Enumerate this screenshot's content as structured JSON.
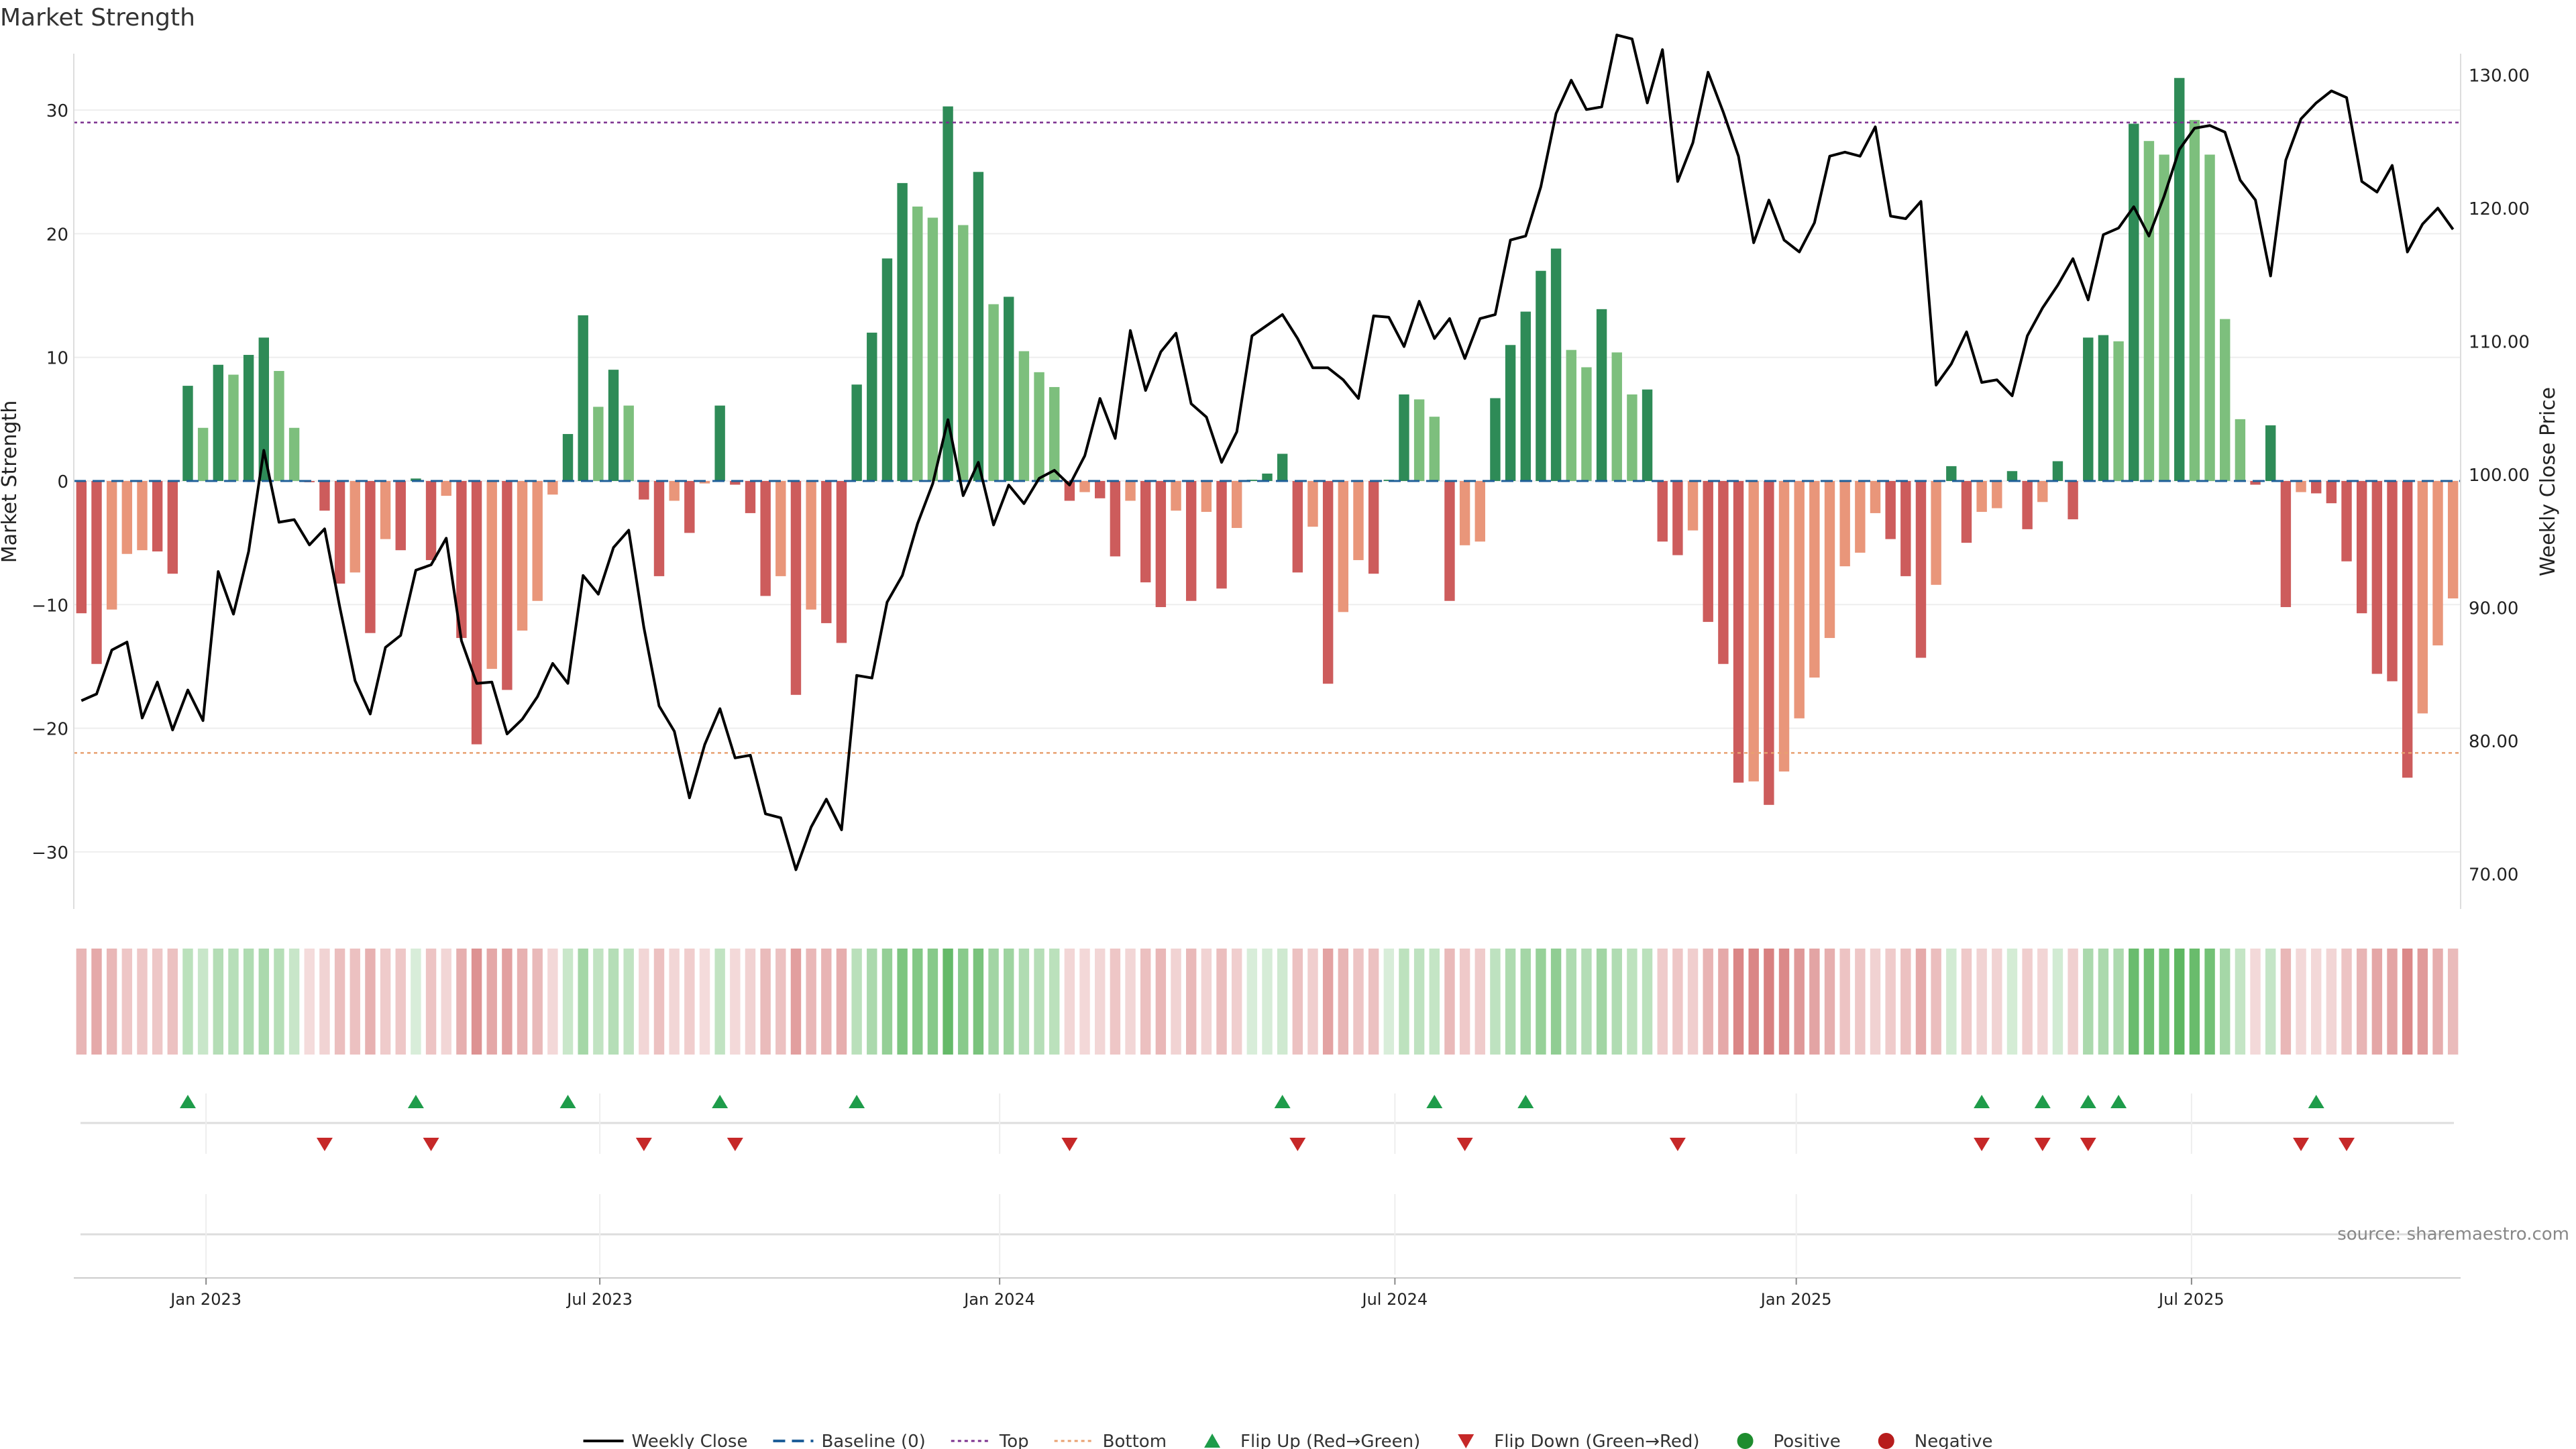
{
  "chart_data": {
    "type": "bar",
    "title": "Market Strength",
    "ylabel_left": "Market Strength",
    "ylabel_right": "Weekly Close Price",
    "source": "source: sharemaestro.com",
    "ylim_left": [
      -35,
      35
    ],
    "ylim_right": [
      67,
      132
    ],
    "yticks_left": [
      30,
      20,
      10,
      0,
      -10,
      -20,
      -30
    ],
    "yticks_left_labels": [
      "30",
      "20",
      "10",
      "0",
      "−10",
      "−20",
      "−30"
    ],
    "yticks_right": [
      130,
      120,
      110,
      100,
      90,
      80,
      70
    ],
    "yticks_right_labels": [
      "130.00",
      "120.00",
      "110.00",
      "100.00",
      "90.00",
      "80.00",
      "70.00"
    ],
    "x_tick_labels": [
      {
        "label": "Jan 2023",
        "week": 8.7
      },
      {
        "label": "Jul 2023",
        "week": 34.6
      },
      {
        "label": "Jan 2024",
        "week": 60.9
      },
      {
        "label": "Jul 2024",
        "week": 86.9
      },
      {
        "label": "Jan 2025",
        "week": 113.3
      },
      {
        "label": "Jul 2025",
        "week": 139.3
      }
    ],
    "top_level": 29,
    "bottom_level": -22,
    "strength": [
      -10.7,
      -14.8,
      -10.4,
      -5.9,
      -5.6,
      -5.7,
      -7.5,
      7.7,
      4.3,
      9.4,
      8.6,
      10.2,
      11.6,
      8.9,
      4.3,
      -0.1,
      -2.4,
      -8.3,
      -7.4,
      -12.3,
      -4.7,
      -5.6,
      0.2,
      -6.4,
      -1.2,
      -12.7,
      -21.3,
      -15.2,
      -16.9,
      -12.1,
      -9.7,
      -1.1,
      3.8,
      13.4,
      6.0,
      9.0,
      6.1,
      -1.5,
      -7.7,
      -1.6,
      -4.2,
      -0.2,
      6.1,
      -0.3,
      -2.6,
      -9.3,
      -7.7,
      -17.3,
      -10.4,
      -11.5,
      -13.1,
      7.8,
      12.0,
      18.0,
      24.1,
      22.2,
      21.3,
      30.3,
      20.7,
      25.0,
      14.3,
      14.9,
      10.5,
      8.8,
      7.6,
      -1.6,
      -0.9,
      -1.4,
      -6.1,
      -1.6,
      -8.2,
      -10.2,
      -2.4,
      -9.7,
      -2.5,
      -8.7,
      -3.8,
      0.1,
      0.6,
      2.2,
      -7.4,
      -3.7,
      -16.4,
      -10.6,
      -6.4,
      -7.5,
      0.1,
      7.0,
      6.6,
      5.2,
      -9.7,
      -5.2,
      -4.9,
      6.7,
      11.0,
      13.7,
      17.0,
      18.8,
      10.6,
      9.2,
      13.9,
      10.4,
      7.0,
      7.4,
      -4.9,
      -6.0,
      -4.0,
      -11.4,
      -14.8,
      -24.4,
      -24.3,
      -26.2,
      -23.5,
      -19.2,
      -15.9,
      -12.7,
      -6.9,
      -5.8,
      -2.6,
      -4.7,
      -7.7,
      -14.3,
      -8.4,
      1.2,
      -5.0,
      -2.5,
      -2.2,
      0.8,
      -3.9,
      -1.7,
      1.6,
      -3.1,
      11.6,
      11.8,
      11.3,
      28.9,
      27.5,
      26.4,
      32.6,
      29.2,
      26.4,
      13.1,
      5.0,
      -0.3,
      4.5,
      -10.2,
      -0.9,
      -1.0,
      -1.8,
      -6.5,
      -10.7,
      -15.6,
      -16.2,
      -24.0,
      -18.8,
      -13.3,
      -9.5
    ],
    "close": [
      83.0,
      83.5,
      86.8,
      87.4,
      81.7,
      84.4,
      80.8,
      83.8,
      81.5,
      92.7,
      89.5,
      94.2,
      101.8,
      96.4,
      96.6,
      94.7,
      95.9,
      90.0,
      84.5,
      82.0,
      87.0,
      87.9,
      92.8,
      93.2,
      95.2,
      87.5,
      84.3,
      84.4,
      80.5,
      81.6,
      83.3,
      85.8,
      84.3,
      92.4,
      91.0,
      94.5,
      95.8,
      88.5,
      82.6,
      80.7,
      75.7,
      79.7,
      82.4,
      78.7,
      78.9,
      74.5,
      74.2,
      70.3,
      73.5,
      75.6,
      73.3,
      84.9,
      84.7,
      90.4,
      92.4,
      96.3,
      99.3,
      104.1,
      98.4,
      100.9,
      96.2,
      99.2,
      97.8,
      99.7,
      100.3,
      99.2,
      101.4,
      105.7,
      102.7,
      110.8,
      106.3,
      109.2,
      110.6,
      105.3,
      104.3,
      100.9,
      103.2,
      110.4,
      111.2,
      112.0,
      110.2,
      108.0,
      108.0,
      107.1,
      105.7,
      111.9,
      111.8,
      109.6,
      113.0,
      110.2,
      111.7,
      108.7,
      111.7,
      112.0,
      117.6,
      117.9,
      121.6,
      127.1,
      129.6,
      127.4,
      127.6,
      133.0,
      132.7,
      127.9,
      131.9,
      122.0,
      124.9,
      130.2,
      127.2,
      123.9,
      117.4,
      120.6,
      117.6,
      116.7,
      118.9,
      123.9,
      124.2,
      123.9,
      126.1,
      119.4,
      119.2,
      120.5,
      106.7,
      108.3,
      110.7,
      106.9,
      107.1,
      105.9,
      110.4,
      112.5,
      114.2,
      116.2,
      113.1,
      118.0,
      118.5,
      120.1,
      117.9,
      120.9,
      124.4,
      126.0,
      126.2,
      125.7,
      122.1,
      120.6,
      114.9,
      123.6,
      126.7,
      127.9,
      128.8,
      128.3,
      122.0,
      121.2,
      123.2,
      116.7,
      118.8,
      120.0,
      118.4
    ],
    "color_bar": [
      "#bd9c9c",
      "#b8b8b8",
      "#c2a5a5",
      "#c7c7c7",
      "#d6b4b4",
      "#9fcda6",
      "#cad4cb"
    ],
    "flip_up_weeks": [
      7,
      22,
      32,
      42,
      51,
      79,
      89,
      95,
      125,
      129,
      132,
      134,
      147
    ],
    "flip_down_weeks": [
      16,
      23,
      37,
      43,
      65,
      80,
      91,
      105,
      125,
      129,
      132,
      146,
      149
    ],
    "legend": [
      {
        "label": "Weekly Close",
        "kind": "line",
        "color": "#000000"
      },
      {
        "label": "Baseline (0)",
        "kind": "dash",
        "color": "#1f5f99"
      },
      {
        "label": "Top",
        "kind": "dot",
        "color": "#7b2f8e"
      },
      {
        "label": "Bottom",
        "kind": "dot",
        "color": "#e8a070"
      },
      {
        "label": "Flip Up (Red→Green)",
        "kind": "tri-up",
        "color": "#1e9c4a"
      },
      {
        "label": "Flip Down (Green→Red)",
        "kind": "tri-down",
        "color": "#c62828"
      },
      {
        "label": "Positive",
        "kind": "circle",
        "color": "#1e8c2e"
      },
      {
        "label": "Negative",
        "kind": "circle",
        "color": "#b71c1c"
      }
    ],
    "colors": {
      "pos_strong": "#2e8b57",
      "pos_weak": "#7dbf7d",
      "neg_strong": "#cd5c5c",
      "neg_weak": "#e9967a",
      "top": "#7b2f8e",
      "bottom": "#e8a070",
      "baseline": "#1f5f99",
      "close": "#000000",
      "flip_up": "#1e9c4a",
      "flip_down": "#c62828",
      "grid": "#eeeeee",
      "axis_text": "#222222"
    }
  }
}
